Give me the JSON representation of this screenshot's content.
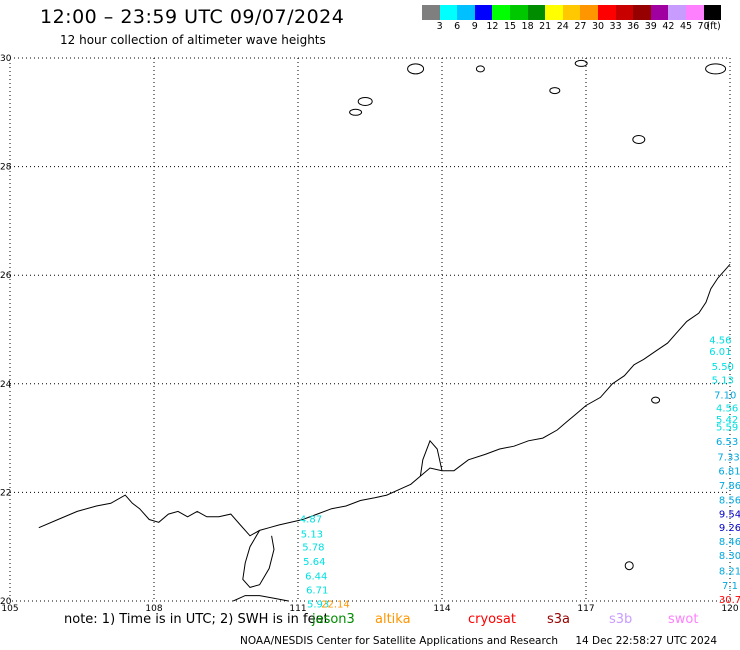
{
  "header": {
    "title": "12:00 – 23:59 UTC 09/07/2024",
    "subtitle": "12 hour collection of altimeter wave heights"
  },
  "legend": {
    "colors": [
      "#7f7f7f",
      "#00ffff",
      "#00c0ff",
      "#0000ff",
      "#00ff00",
      "#00c800",
      "#008c00",
      "#ffff00",
      "#ffc800",
      "#ff9600",
      "#ff0000",
      "#c80000",
      "#960000",
      "#a000a0",
      "#c89bff",
      "#ff80ff",
      "#000000"
    ],
    "labels": [
      "3",
      "6",
      "9",
      "12",
      "15",
      "18",
      "21",
      "24",
      "27",
      "30",
      "33",
      "36",
      "39",
      "42",
      "45",
      "70"
    ],
    "unit": "(ft)"
  },
  "map": {
    "lon_ticks": [
      "105",
      "108",
      "111",
      "114",
      "117",
      "120"
    ],
    "lat_ticks": [
      "30",
      "28",
      "26",
      "24",
      "22",
      "20"
    ],
    "lon_range": [
      105,
      120
    ],
    "lat_range": [
      20,
      30
    ],
    "grid": true
  },
  "swh_labels": [
    {
      "text": "4.56",
      "color": "#00e0e0",
      "lon": 119.8,
      "lat": 24.74
    },
    {
      "text": "6.01",
      "color": "#00e0e0",
      "lon": 119.8,
      "lat": 24.53
    },
    {
      "text": "5.50",
      "color": "#00e0e0",
      "lon": 119.85,
      "lat": 24.25
    },
    {
      "text": "5.13",
      "color": "#00e0e0",
      "lon": 119.85,
      "lat": 24.01
    },
    {
      "text": "7.10",
      "color": "#00a8e0",
      "lon": 119.9,
      "lat": 23.73
    },
    {
      "text": "4.56",
      "color": "#00e0e0",
      "lon": 119.94,
      "lat": 23.49
    },
    {
      "text": "5.42",
      "color": "#00e0e0",
      "lon": 119.94,
      "lat": 23.28
    },
    {
      "text": "5.59",
      "color": "#00e0e0",
      "lon": 119.94,
      "lat": 23.14
    },
    {
      "text": "6.53",
      "color": "#00a8e0",
      "lon": 119.94,
      "lat": 22.87
    },
    {
      "text": "7.33",
      "color": "#00a8e0",
      "lon": 119.97,
      "lat": 22.59
    },
    {
      "text": "6.81",
      "color": "#00a8e0",
      "lon": 119.99,
      "lat": 22.33
    },
    {
      "text": "7.86",
      "color": "#00a8e0",
      "lon": 120.0,
      "lat": 22.06
    },
    {
      "text": "8.56",
      "color": "#00a8e0",
      "lon": 120.0,
      "lat": 21.8
    },
    {
      "text": "9.54",
      "color": "#0000c8",
      "lon": 120.0,
      "lat": 21.54
    },
    {
      "text": "9.26",
      "color": "#0000c8",
      "lon": 120.0,
      "lat": 21.29
    },
    {
      "text": "8.46",
      "color": "#00a8e0",
      "lon": 120.0,
      "lat": 21.03
    },
    {
      "text": "8.30",
      "color": "#00a8e0",
      "lon": 120.0,
      "lat": 20.77
    },
    {
      "text": "8.21",
      "color": "#00a8e0",
      "lon": 120.0,
      "lat": 20.49
    },
    {
      "text": "7.1",
      "color": "#00a8e0",
      "lon": 120.0,
      "lat": 20.22
    },
    {
      "text": "30.7",
      "color": "#ff0000",
      "lon": 120.0,
      "lat": 19.96
    },
    {
      "text": "4.87",
      "color": "#00e0e0",
      "lon": 111.27,
      "lat": 21.45
    },
    {
      "text": "5.13",
      "color": "#00e0e0",
      "lon": 111.29,
      "lat": 21.17
    },
    {
      "text": "5.78",
      "color": "#00e0e0",
      "lon": 111.32,
      "lat": 20.93
    },
    {
      "text": "5.64",
      "color": "#00e0e0",
      "lon": 111.34,
      "lat": 20.66
    },
    {
      "text": "6.44",
      "color": "#00e0e0",
      "lon": 111.38,
      "lat": 20.4
    },
    {
      "text": "6.71",
      "color": "#00e0e0",
      "lon": 111.4,
      "lat": 20.14
    },
    {
      "text": "5.93",
      "color": "#00e0e0",
      "lon": 111.42,
      "lat": 19.88
    },
    {
      "text": "22.14",
      "color": "#ff9600",
      "lon": 111.78,
      "lat": 19.88
    }
  ],
  "footer": {
    "note": "note: 1) Time is in UTC; 2) SWH is in feet",
    "satellites": [
      {
        "name": "jason3",
        "color": "#008c00"
      },
      {
        "name": "altika",
        "color": "#ff9600"
      },
      {
        "name": "cryosat",
        "color": "#ff0000"
      },
      {
        "name": "s3a",
        "color": "#960000"
      },
      {
        "name": "s3b",
        "color": "#c89bff"
      },
      {
        "name": "swot",
        "color": "#ff80ff"
      }
    ],
    "credit": "NOAA/NESDIS Center for Satellite Applications and Research",
    "timestamp": "14 Dec 22:58:27 UTC 2024"
  }
}
